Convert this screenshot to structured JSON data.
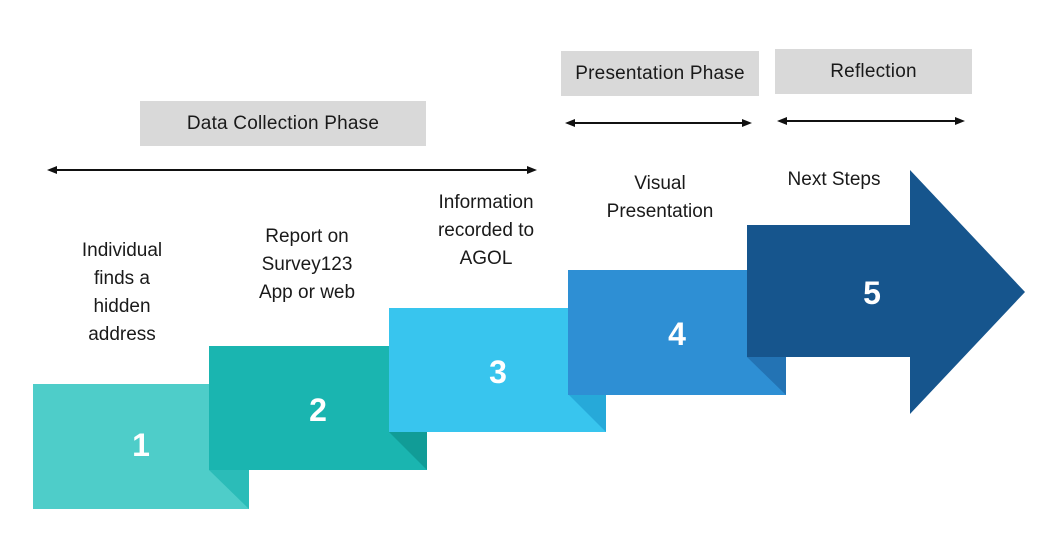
{
  "phases": {
    "data_collection": {
      "label": "Data Collection Phase"
    },
    "presentation": {
      "label": "Presentation Phase"
    },
    "reflection": {
      "label": "Reflection"
    }
  },
  "steps": [
    {
      "number": "1",
      "text": "Individual\nfinds a\nhidden\naddress",
      "color": "#4ecdc9",
      "fold_color": "#2bbcb8"
    },
    {
      "number": "2",
      "text": "Report on\nSurvey123\nApp or web",
      "color": "#1ab5b0",
      "fold_color": "#119c97"
    },
    {
      "number": "3",
      "text": "Information\nrecorded to\nAGOL",
      "color": "#38c5ee",
      "fold_color": "#26a9d9"
    },
    {
      "number": "4",
      "text": "Visual\nPresentation",
      "color": "#2e8fd4",
      "fold_color": "#2373b4"
    },
    {
      "number": "5",
      "text": "Next Steps",
      "color": "#16558d",
      "fold_color": "#0f4371"
    }
  ],
  "colors": {
    "phase_box": "#d9d9d9",
    "arrow_line": "#111111"
  }
}
